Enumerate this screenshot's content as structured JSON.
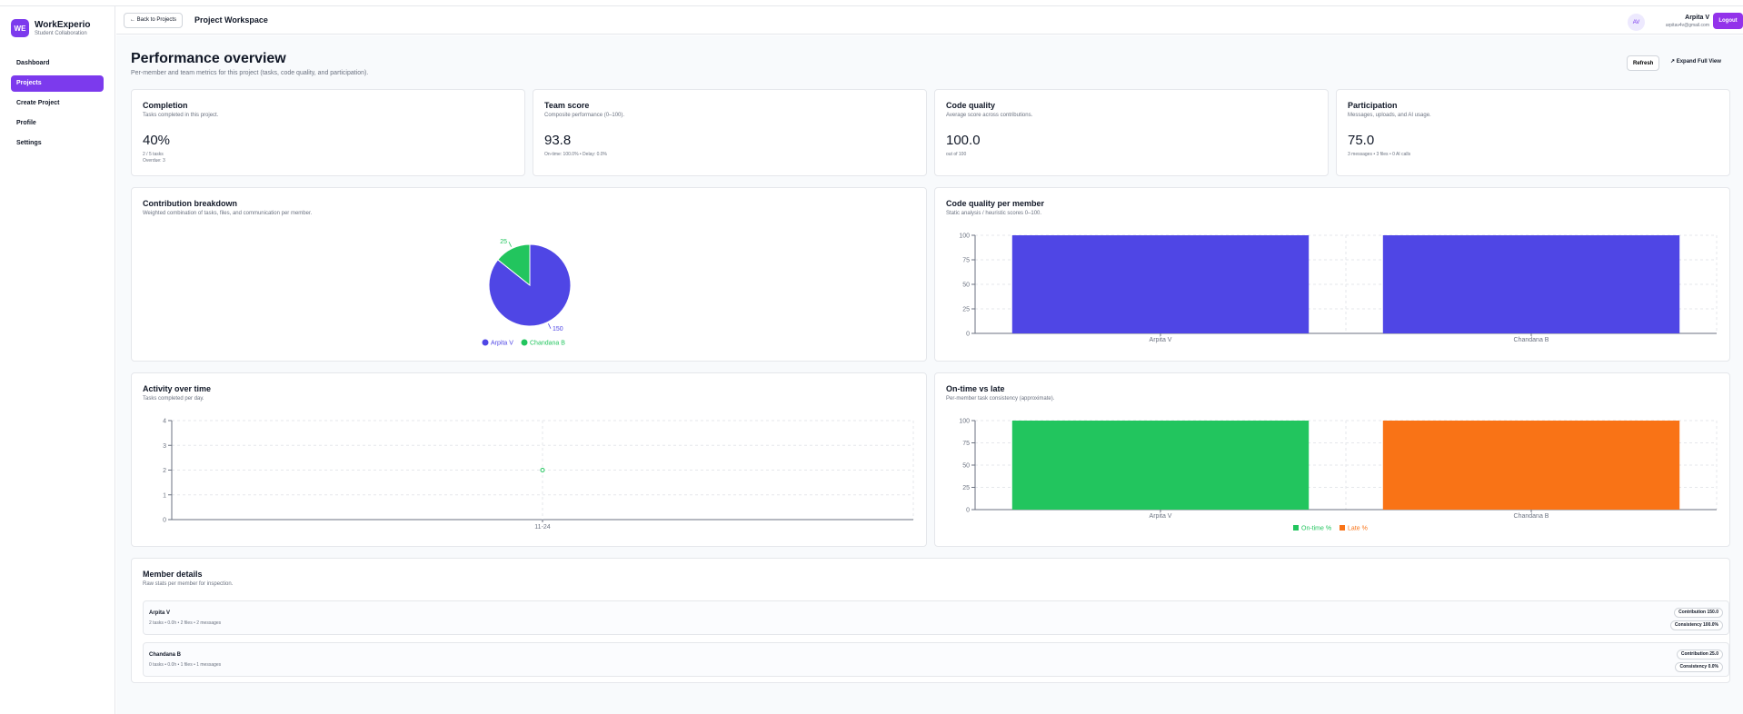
{
  "app": {
    "logo": "WE",
    "name": "WorkExperio",
    "subtitle": "Student Collaboration",
    "brand_color": "#7c3aed"
  },
  "sidebar": {
    "items": [
      {
        "label": "Dashboard",
        "active": false
      },
      {
        "label": "Projects",
        "active": true
      },
      {
        "label": "Create Project",
        "active": false
      },
      {
        "label": "Profile",
        "active": false
      },
      {
        "label": "Settings",
        "active": false
      }
    ]
  },
  "topbar": {
    "back_label": "← Back to Projects",
    "title": "Project Workspace",
    "user": {
      "initials": "AV",
      "name": "Arpita V",
      "email": "arpitav4v@gmail.com"
    },
    "logout_label": "Logout"
  },
  "header": {
    "title": "Performance overview",
    "subtitle": "Per-member and team metrics for this project (tasks, code quality, and participation).",
    "refresh_label": "Refresh",
    "expand_label": "↗ Expand Full View"
  },
  "metrics": [
    {
      "title": "Completion",
      "subtitle": "Tasks completed in this project.",
      "value": "40%",
      "note1": "2 / 5 tasks",
      "note2": "Overdue: 3"
    },
    {
      "title": "Team score",
      "subtitle": "Composite performance (0–100).",
      "value": "93.8",
      "note1": "On-time: 100.0% • Delay: 0.0%"
    },
    {
      "title": "Code quality",
      "subtitle": "Average score across contributions.",
      "value": "100.0",
      "note1": "out of 100"
    },
    {
      "title": "Participation",
      "subtitle": "Messages, uploads, and AI usage.",
      "value": "75.0",
      "note1": "3 messages • 3 files • 0 AI calls"
    }
  ],
  "contribution": {
    "title": "Contribution breakdown",
    "subtitle": "Weighted combination of tasks, files, and communication per member.",
    "chart_data": {
      "type": "pie",
      "categories": [
        "Arpita V",
        "Chandana B"
      ],
      "values": [
        150,
        25
      ],
      "colors": [
        "#4f46e5",
        "#22c55e"
      ],
      "legend": "bottom"
    }
  },
  "code_quality": {
    "title": "Code quality per member",
    "subtitle": "Static analysis / heuristic scores 0–100.",
    "chart_data": {
      "type": "bar",
      "categories": [
        "Arpita V",
        "Chandana B"
      ],
      "values": [
        100,
        100
      ],
      "ylim": [
        0,
        100
      ],
      "yticks": [
        0,
        25,
        50,
        75,
        100
      ],
      "color": "#4f46e5",
      "grid": true
    }
  },
  "activity": {
    "title": "Activity over time",
    "subtitle": "Tasks completed per day.",
    "chart_data": {
      "type": "line",
      "x": [
        "11-24"
      ],
      "values": [
        2
      ],
      "ylim": [
        0,
        4
      ],
      "yticks": [
        0,
        1,
        2,
        3,
        4
      ],
      "color": "#22c55e",
      "grid": true
    }
  },
  "ontime": {
    "title": "On-time vs late",
    "subtitle": "Per-member task consistency (approximate).",
    "chart_data": {
      "type": "bar",
      "categories": [
        "Arpita V",
        "Chandana B"
      ],
      "series": [
        {
          "name": "On-time %",
          "values": [
            100,
            0
          ],
          "color": "#22c55e"
        },
        {
          "name": "Late %",
          "values": [
            0,
            100
          ],
          "color": "#f97316"
        }
      ],
      "ylim": [
        0,
        100
      ],
      "yticks": [
        0,
        25,
        50,
        75,
        100
      ],
      "legend": "bottom",
      "grid": true
    }
  },
  "members": {
    "title": "Member details",
    "subtitle": "Raw stats per member for inspection.",
    "rows": [
      {
        "name": "Arpita V",
        "stats": "2 tasks • 0.0h • 2 files • 2 messages",
        "contribution": "Contribution 150.0",
        "consistency": "Consistency 100.0%"
      },
      {
        "name": "Chandana B",
        "stats": "0 tasks • 0.0h • 1 files • 1 messages",
        "contribution": "Contribution 25.0",
        "consistency": "Consistency 0.0%"
      }
    ]
  }
}
